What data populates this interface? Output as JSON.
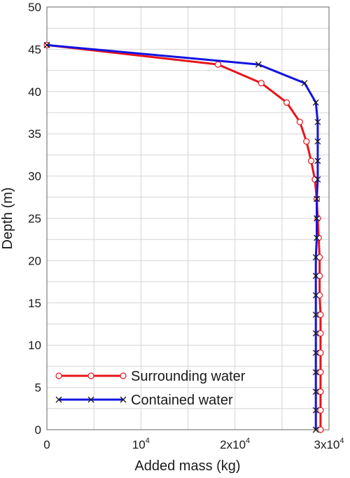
{
  "chart_data": {
    "type": "line",
    "title": "",
    "xlabel": "Added mass (kg)",
    "ylabel": "Depth (m)",
    "xlim": [
      0,
      30000
    ],
    "ylim": [
      0,
      50
    ],
    "grid": true,
    "legend_position": "bottom-left",
    "x_ticks": [
      {
        "value": 0,
        "base": "0",
        "exp": ""
      },
      {
        "value": 10000,
        "base": "10",
        "exp": "4"
      },
      {
        "value": 20000,
        "base": "2x10",
        "exp": "4"
      },
      {
        "value": 30000,
        "base": "3x10",
        "exp": "4"
      }
    ],
    "y_ticks": [
      0,
      5,
      10,
      15,
      20,
      25,
      30,
      35,
      40,
      45,
      50
    ],
    "series": [
      {
        "name": "Surrounding water",
        "color": "#e8141c",
        "marker": "circle",
        "points": [
          [
            0,
            45.5
          ],
          [
            18200,
            43.2
          ],
          [
            22800,
            41.0
          ],
          [
            25500,
            38.7
          ],
          [
            26900,
            36.4
          ],
          [
            27600,
            34.1
          ],
          [
            28100,
            31.8
          ],
          [
            28500,
            29.6
          ],
          [
            28700,
            27.3
          ],
          [
            28800,
            25.0
          ],
          [
            28900,
            22.7
          ],
          [
            29000,
            20.4
          ],
          [
            29000,
            18.2
          ],
          [
            29000,
            15.9
          ],
          [
            29100,
            13.6
          ],
          [
            29100,
            11.4
          ],
          [
            29100,
            9.1
          ],
          [
            29100,
            6.8
          ],
          [
            29100,
            4.5
          ],
          [
            29100,
            2.3
          ],
          [
            29100,
            0.0
          ]
        ]
      },
      {
        "name": "Contained water",
        "color": "#1414e0",
        "marker": "x",
        "points": [
          [
            0,
            45.5
          ],
          [
            22500,
            43.2
          ],
          [
            27400,
            41.0
          ],
          [
            28600,
            38.7
          ],
          [
            28800,
            36.4
          ],
          [
            28800,
            34.1
          ],
          [
            28800,
            31.8
          ],
          [
            28800,
            29.6
          ],
          [
            28700,
            27.3
          ],
          [
            28700,
            25.0
          ],
          [
            28700,
            22.7
          ],
          [
            28600,
            20.4
          ],
          [
            28600,
            18.2
          ],
          [
            28600,
            15.9
          ],
          [
            28600,
            13.6
          ],
          [
            28600,
            11.4
          ],
          [
            28600,
            9.1
          ],
          [
            28600,
            6.8
          ],
          [
            28600,
            4.5
          ],
          [
            28600,
            2.3
          ],
          [
            28600,
            0.0
          ]
        ]
      }
    ]
  }
}
